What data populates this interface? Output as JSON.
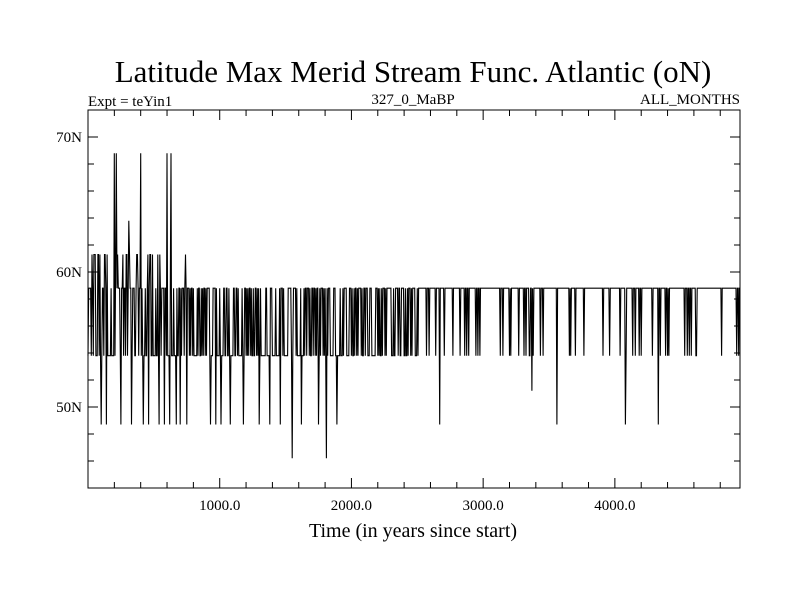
{
  "chart_data": {
    "type": "line",
    "title": "Latitude Max Merid Stream Func. Atlantic (oN)",
    "subtitle_left": "Expt = teYin1",
    "subtitle_center": "327_0_MaBP",
    "subtitle_right": "ALL_MONTHS",
    "xlabel": "Time (in years since start)",
    "ylabel": "",
    "xlim": [
      0,
      4950
    ],
    "ylim": [
      44,
      72
    ],
    "x_ticks": [
      {
        "value": 1000,
        "label": "1000.0"
      },
      {
        "value": 2000,
        "label": "2000.0"
      },
      {
        "value": 3000,
        "label": "3000.0"
      },
      {
        "value": 4000,
        "label": "4000.0"
      }
    ],
    "y_ticks": [
      {
        "value": 50,
        "label": "50N"
      },
      {
        "value": 60,
        "label": "60N"
      },
      {
        "value": 70,
        "label": "70N"
      }
    ],
    "series": [
      {
        "name": "Latitude Max Merid Stream Func. Atlantic",
        "color": "#000000",
        "dominant_levels": [
          53.8,
          58.8
        ],
        "early_upper_level": 61.3,
        "spikes": [
          {
            "x": 100,
            "y": 48.7
          },
          {
            "x": 140,
            "y": 48.7
          },
          {
            "x": 200,
            "y": 68.8
          },
          {
            "x": 215,
            "y": 68.8
          },
          {
            "x": 250,
            "y": 48.7
          },
          {
            "x": 310,
            "y": 63.8
          },
          {
            "x": 330,
            "y": 48.7
          },
          {
            "x": 400,
            "y": 68.8
          },
          {
            "x": 420,
            "y": 48.7
          },
          {
            "x": 460,
            "y": 48.7
          },
          {
            "x": 540,
            "y": 48.7
          },
          {
            "x": 580,
            "y": 48.7
          },
          {
            "x": 600,
            "y": 68.8
          },
          {
            "x": 620,
            "y": 48.7
          },
          {
            "x": 630,
            "y": 68.8
          },
          {
            "x": 670,
            "y": 48.7
          },
          {
            "x": 700,
            "y": 48.7
          },
          {
            "x": 740,
            "y": 61.3
          },
          {
            "x": 750,
            "y": 48.7
          },
          {
            "x": 930,
            "y": 48.7
          },
          {
            "x": 970,
            "y": 48.7
          },
          {
            "x": 1010,
            "y": 48.7
          },
          {
            "x": 1080,
            "y": 48.7
          },
          {
            "x": 1180,
            "y": 48.7
          },
          {
            "x": 1300,
            "y": 48.7
          },
          {
            "x": 1380,
            "y": 48.7
          },
          {
            "x": 1460,
            "y": 48.7
          },
          {
            "x": 1550,
            "y": 46.2
          },
          {
            "x": 1620,
            "y": 48.7
          },
          {
            "x": 1750,
            "y": 48.7
          },
          {
            "x": 1810,
            "y": 46.2
          },
          {
            "x": 1890,
            "y": 48.7
          },
          {
            "x": 2670,
            "y": 48.7
          },
          {
            "x": 3370,
            "y": 51.2
          },
          {
            "x": 3560,
            "y": 48.7
          },
          {
            "x": 4080,
            "y": 48.7
          },
          {
            "x": 4330,
            "y": 48.7
          }
        ]
      }
    ]
  }
}
